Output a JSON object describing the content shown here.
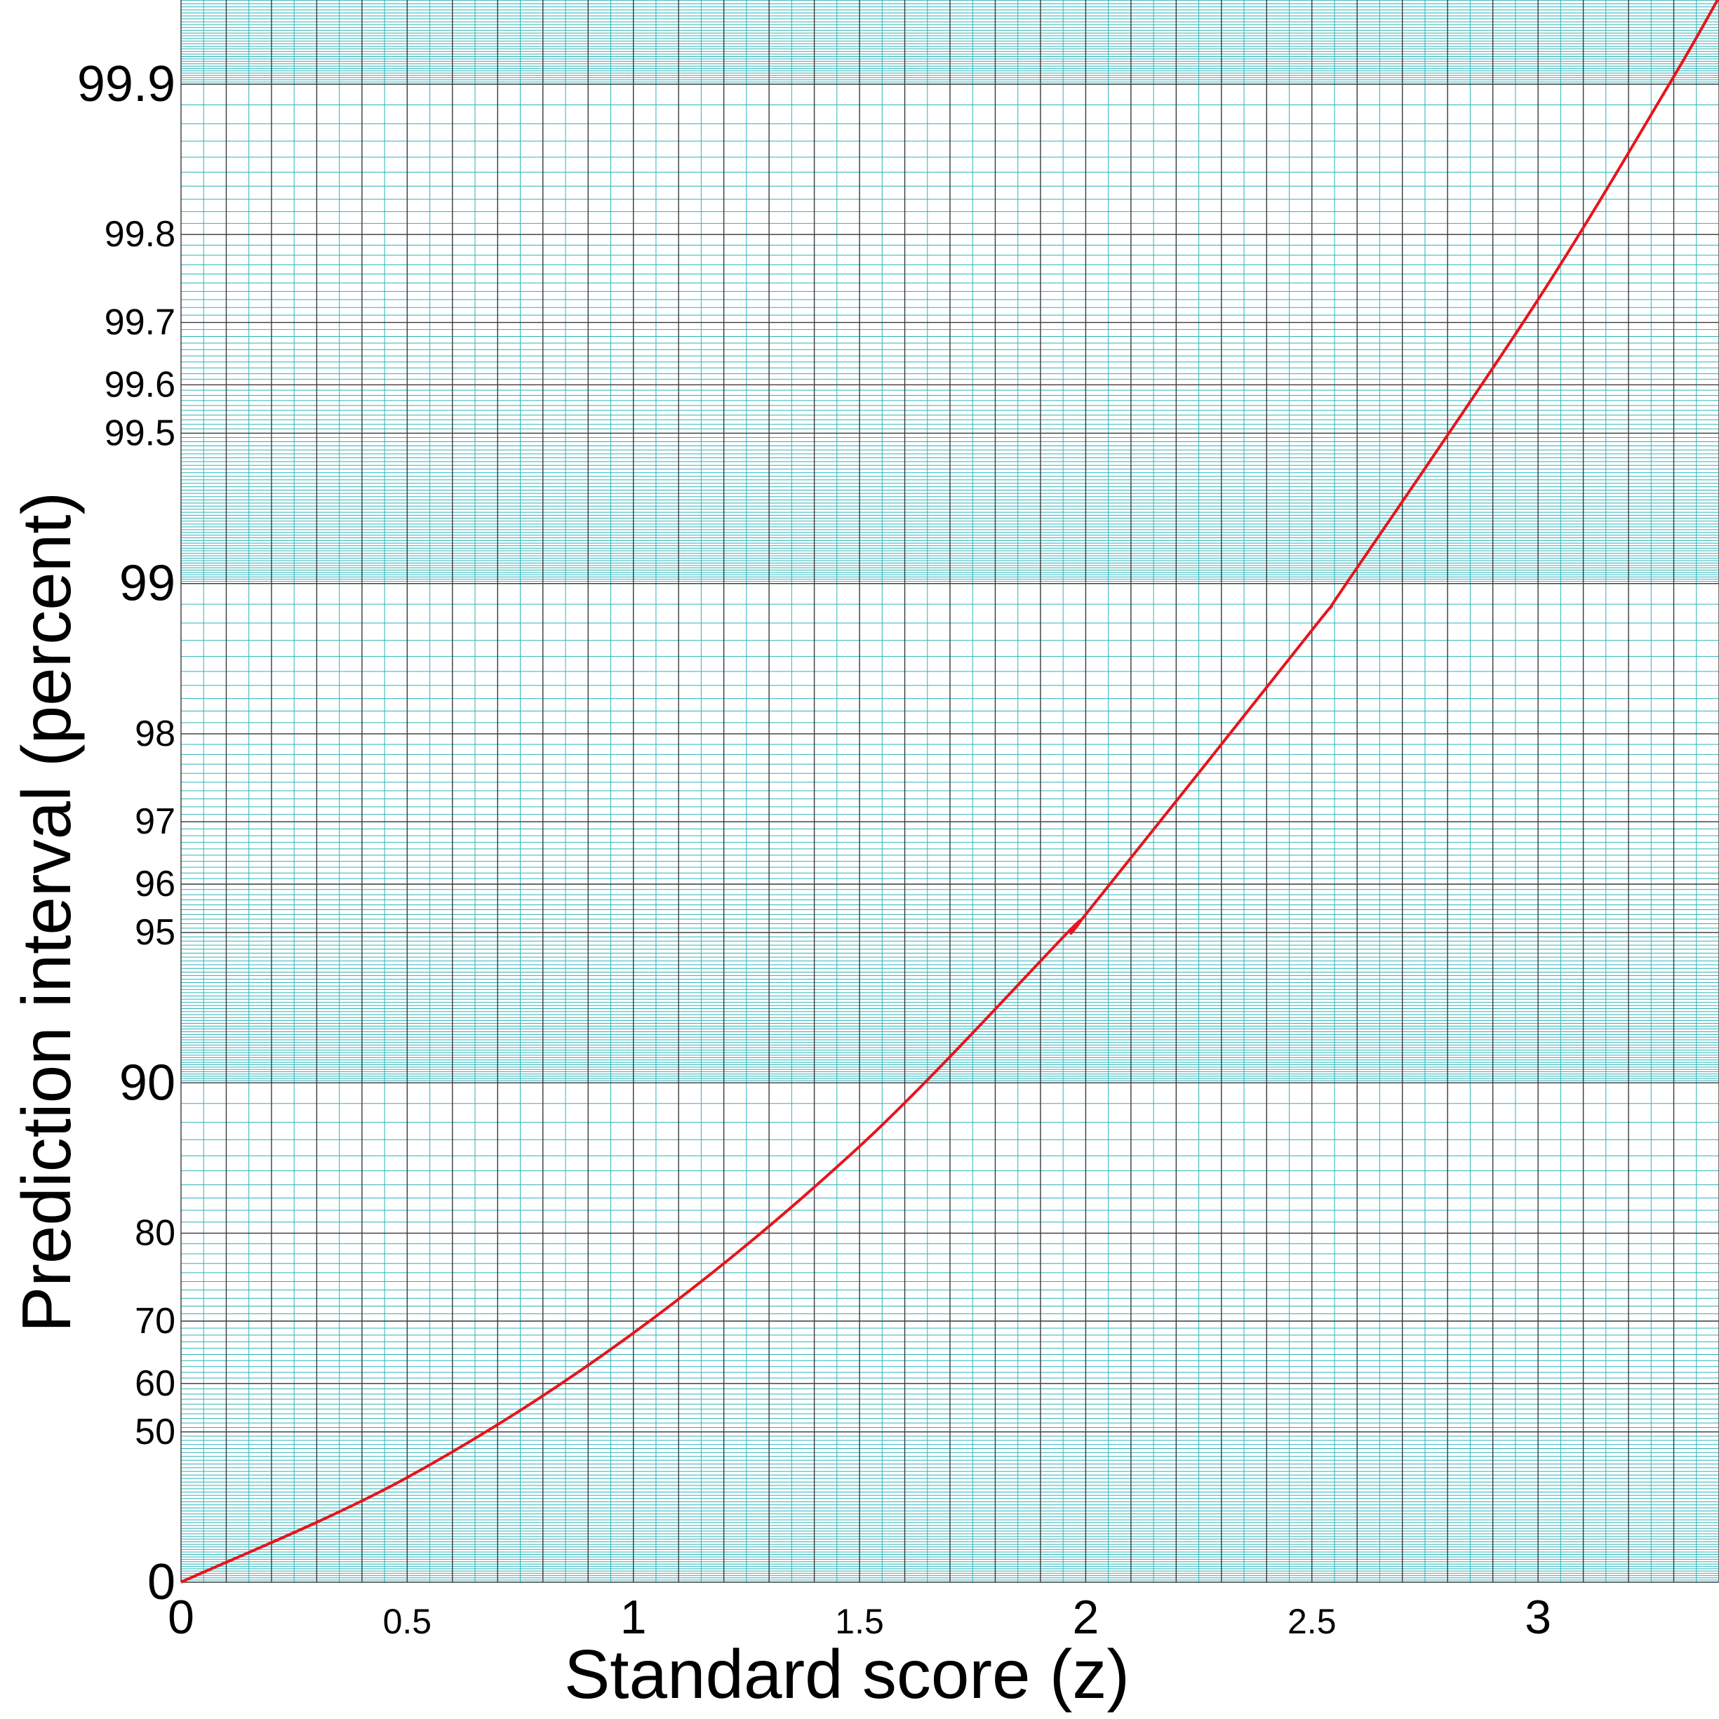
{
  "chart_data": {
    "type": "line",
    "xlabel": "Standard score (z)",
    "ylabel": "Prediction interval (percent)",
    "xlim": [
      0,
      3.4
    ],
    "ylim": [
      0,
      99.95
    ],
    "y_scale": "log10(100/(100-percent))",
    "grid": true,
    "x_ticks": [
      {
        "value": 0,
        "label": "0",
        "size": "major"
      },
      {
        "value": 0.5,
        "label": "0.5",
        "size": "minor"
      },
      {
        "value": 1,
        "label": "1",
        "size": "major"
      },
      {
        "value": 1.5,
        "label": "1.5",
        "size": "minor"
      },
      {
        "value": 2,
        "label": "2",
        "size": "major"
      },
      {
        "value": 2.5,
        "label": "2.5",
        "size": "minor"
      },
      {
        "value": 3,
        "label": "3",
        "size": "major"
      }
    ],
    "y_ticks": [
      {
        "value": 0,
        "label": "0",
        "size": "major"
      },
      {
        "value": 50,
        "label": "50",
        "size": "minor"
      },
      {
        "value": 60,
        "label": "60",
        "size": "minor"
      },
      {
        "value": 70,
        "label": "70",
        "size": "minor"
      },
      {
        "value": 80,
        "label": "80",
        "size": "minor"
      },
      {
        "value": 90,
        "label": "90",
        "size": "major"
      },
      {
        "value": 95,
        "label": "95",
        "size": "minor"
      },
      {
        "value": 96,
        "label": "96",
        "size": "minor"
      },
      {
        "value": 97,
        "label": "97",
        "size": "minor"
      },
      {
        "value": 98,
        "label": "98",
        "size": "minor"
      },
      {
        "value": 99,
        "label": "99",
        "size": "major"
      },
      {
        "value": 99.5,
        "label": "99.5",
        "size": "minor"
      },
      {
        "value": 99.6,
        "label": "99.6",
        "size": "minor"
      },
      {
        "value": 99.7,
        "label": "99.7",
        "size": "minor"
      },
      {
        "value": 99.8,
        "label": "99.8",
        "size": "minor"
      },
      {
        "value": 99.9,
        "label": "99.9",
        "size": "major"
      }
    ],
    "series": [
      {
        "color": "#e8141b",
        "x": [
          0,
          0.5,
          1,
          1.5,
          1.96,
          2,
          2.5,
          2.576,
          3,
          3.29,
          3.4
        ],
        "y": [
          0,
          38.3,
          68.3,
          86.6,
          95.0,
          95.4,
          98.76,
          99.0,
          99.73,
          99.9,
          99.933
        ]
      }
    ],
    "colors": {
      "major_grid": "#3a3a3a",
      "minor_grid": "#2bb3b8",
      "curve": "#e8141b"
    }
  }
}
